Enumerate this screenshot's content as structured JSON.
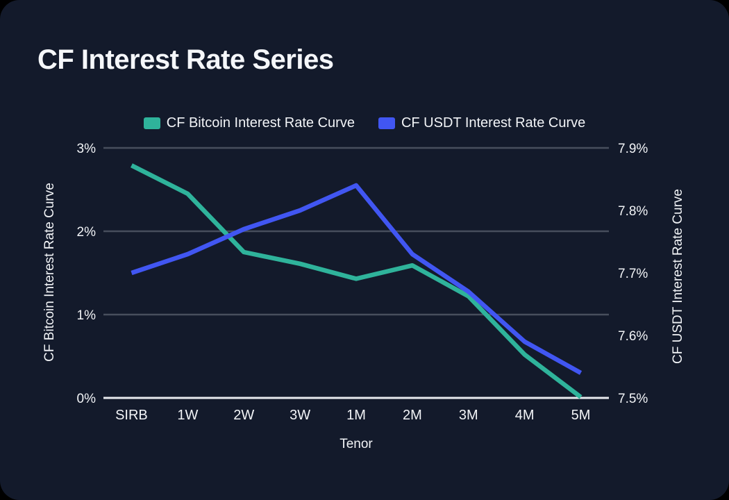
{
  "card": {
    "title": "CF Interest Rate Series",
    "background_color": "#131a2b"
  },
  "chart_data": {
    "type": "line",
    "title": "CF Interest Rate Series",
    "categories": [
      "SIRB",
      "1W",
      "2W",
      "3W",
      "1M",
      "2M",
      "3M",
      "4M",
      "5M"
    ],
    "x_axis_title": "Tenor",
    "series": [
      {
        "name": "CF Bitcoin Interest Rate Curve",
        "axis": "left",
        "color": "#2fb39b",
        "values": [
          2.79,
          2.45,
          1.75,
          1.61,
          1.43,
          1.59,
          1.22,
          0.52,
          0.01
        ]
      },
      {
        "name": "CF USDT Interest Rate Curve",
        "axis": "right",
        "color": "#4156f2",
        "values": [
          7.7,
          7.73,
          7.77,
          7.8,
          7.84,
          7.73,
          7.67,
          7.59,
          7.54
        ]
      }
    ],
    "left_axis": {
      "title": "CF Bitcoin Interest Rate Curve",
      "ticks": [
        "3%",
        "2%",
        "1%",
        "0%"
      ],
      "tick_values": [
        3,
        2,
        1,
        0
      ],
      "range": [
        0,
        3
      ]
    },
    "right_axis": {
      "title": "CF USDT Interest Rate Curve",
      "ticks": [
        "7.9%",
        "7.8%",
        "7.7%",
        "7.6%",
        "7.5%"
      ],
      "tick_values": [
        7.9,
        7.8,
        7.7,
        7.6,
        7.5
      ],
      "range": [
        7.5,
        7.9
      ]
    },
    "grid": true,
    "legend_position": "top",
    "colors": {
      "grid": "#474e5d",
      "axis_line": "#e8eaee",
      "text": "#f2f4f7"
    }
  }
}
